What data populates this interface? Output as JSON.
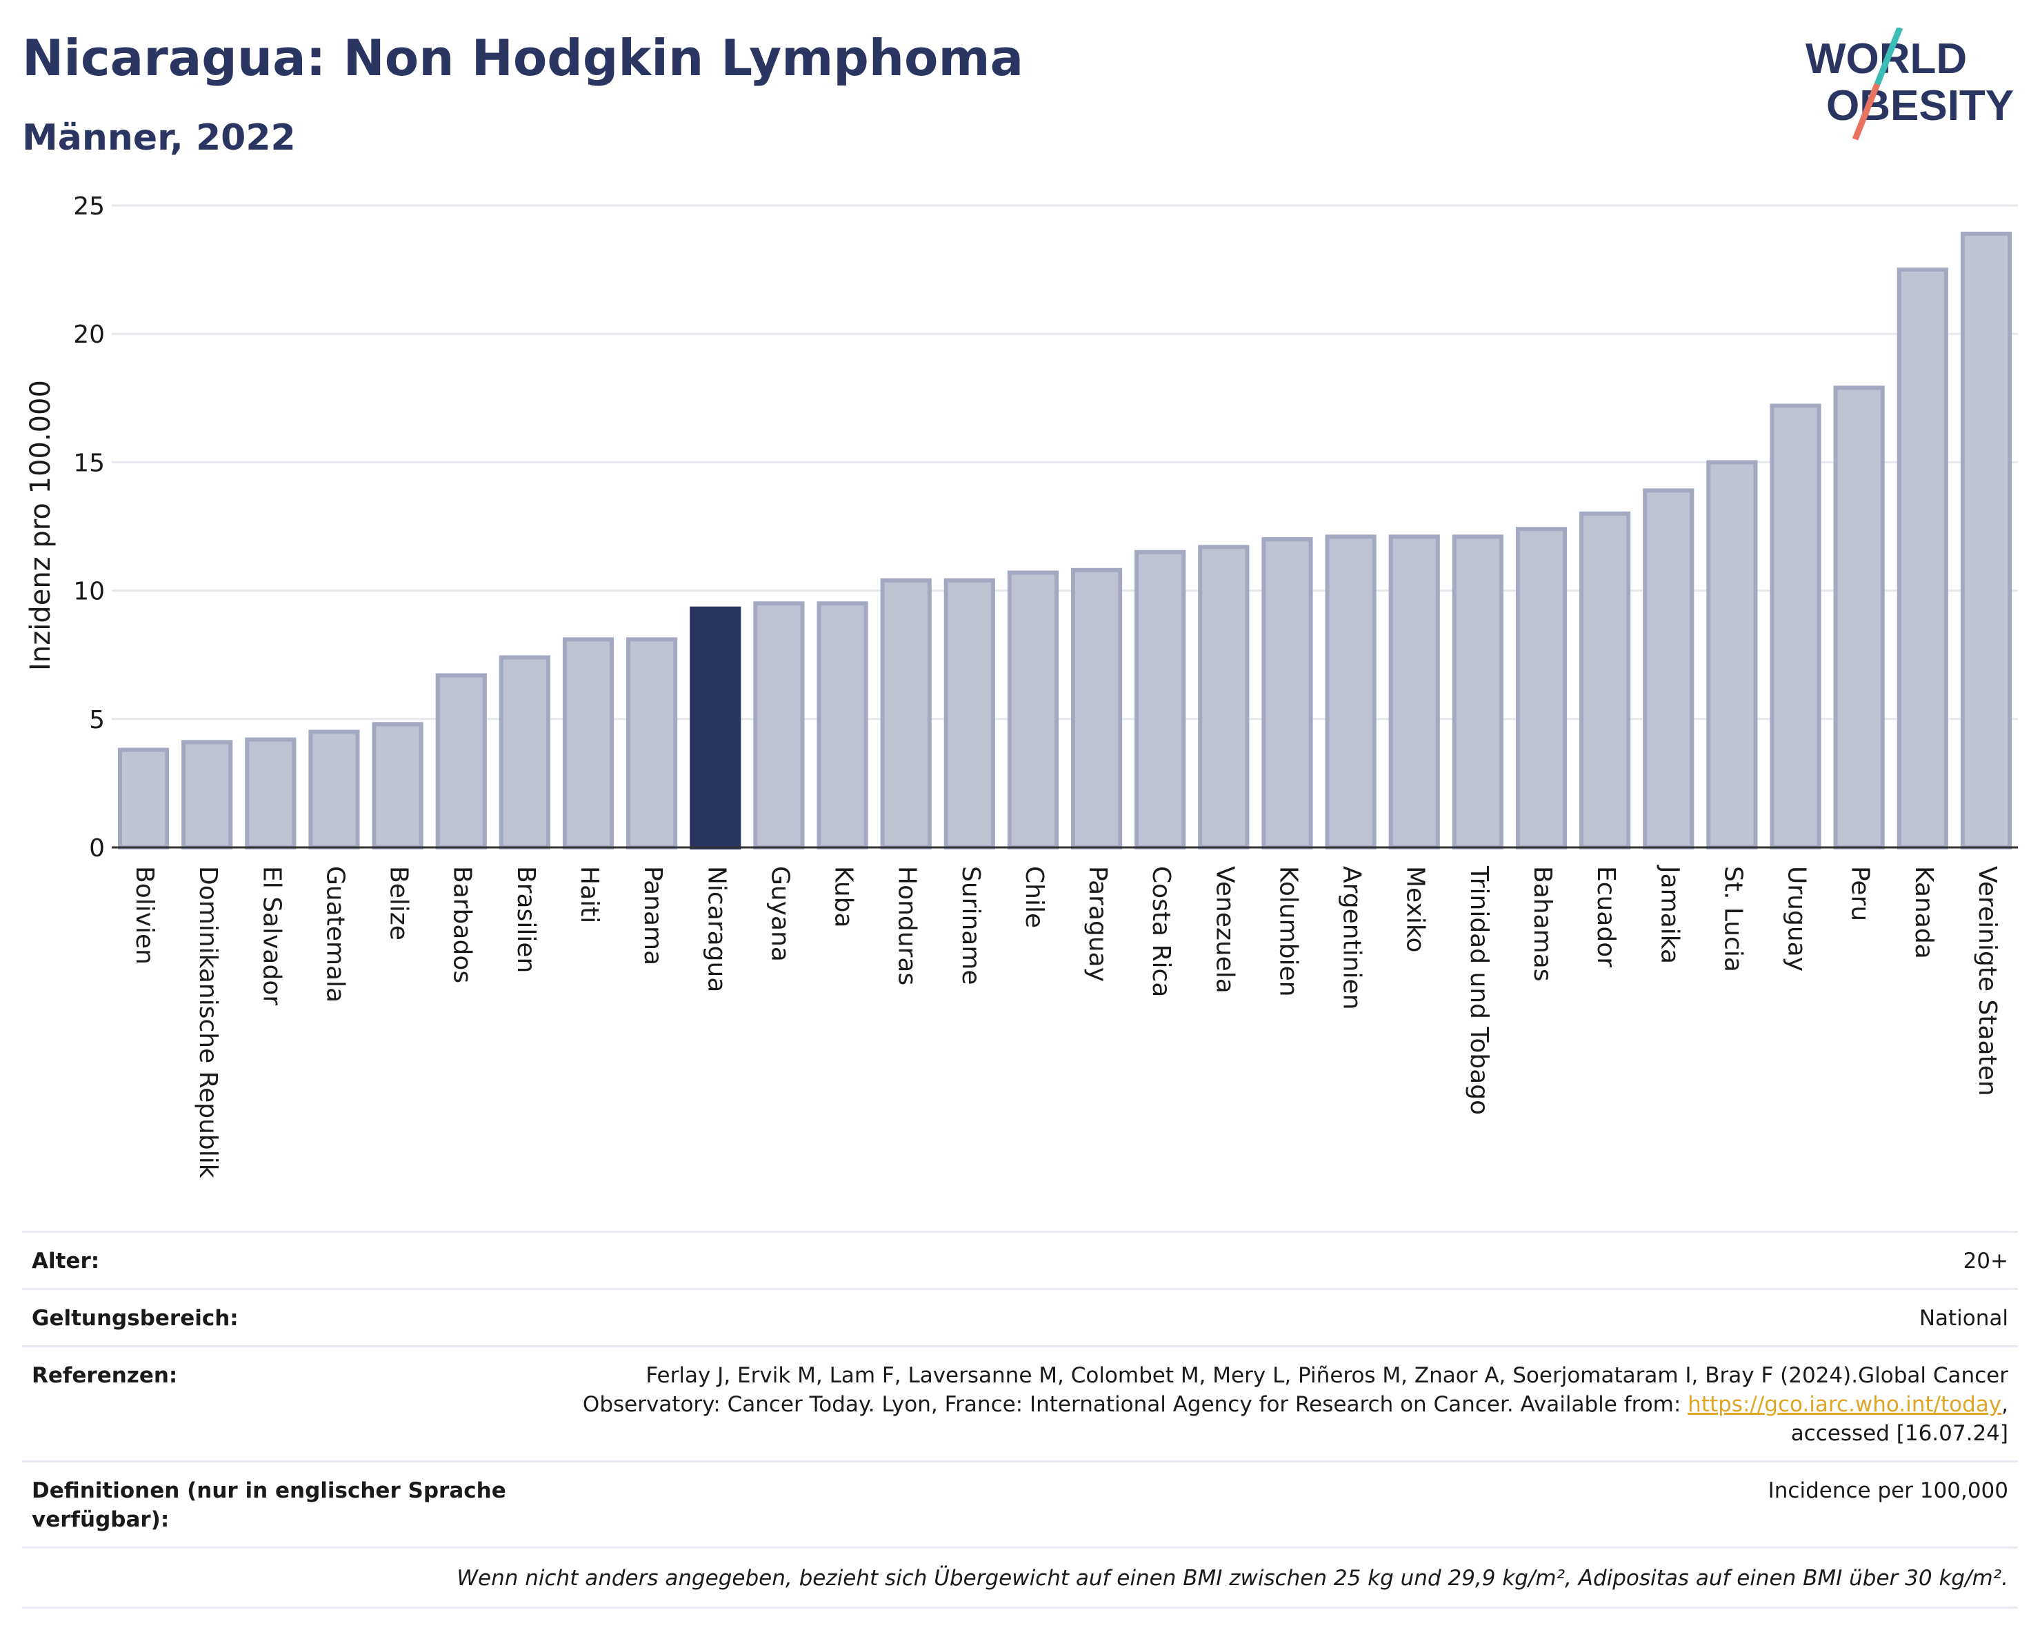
{
  "header": {
    "title": "Nicaragua: Non Hodgkin Lymphoma",
    "subtitle": "Männer, 2022",
    "logo_line1": "WORLD",
    "logo_line2": "OBESITY"
  },
  "colors": {
    "highlight": "#2b3561",
    "bar_fill": "#c0c4d2",
    "bar_stroke": "#a3a9c0",
    "title": "#2b3561",
    "logo_slash_top": "#3dbdb8",
    "logo_slash_bottom": "#e8745f",
    "link": "#e0a526"
  },
  "chart_data": {
    "type": "bar",
    "title": "Nicaragua: Non Hodgkin Lymphoma",
    "subtitle": "Männer, 2022",
    "xlabel": "",
    "ylabel": "Inzidenz pro 100.000",
    "ylim": [
      0,
      25
    ],
    "yticks": [
      0,
      5,
      10,
      15,
      20,
      25
    ],
    "grid": true,
    "highlight": "Nicaragua",
    "categories": [
      "Bolivien",
      "Dominikanische Republik",
      "El Salvador",
      "Guatemala",
      "Belize",
      "Barbados",
      "Brasilien",
      "Haiti",
      "Panama",
      "Nicaragua",
      "Guyana",
      "Kuba",
      "Honduras",
      "Suriname",
      "Chile",
      "Paraguay",
      "Costa Rica",
      "Venezuela",
      "Kolumbien",
      "Argentinien",
      "Mexiko",
      "Trinidad und Tobago",
      "Bahamas",
      "Ecuador",
      "Jamaika",
      "St. Lucia",
      "Uruguay",
      "Peru",
      "Kanada",
      "Vereinigte Staaten"
    ],
    "values": [
      3.8,
      4.1,
      4.2,
      4.5,
      4.8,
      6.7,
      7.4,
      8.1,
      8.1,
      9.3,
      9.5,
      9.5,
      10.4,
      10.4,
      10.7,
      10.8,
      11.5,
      11.7,
      12.0,
      12.1,
      12.1,
      12.1,
      12.4,
      13.0,
      13.9,
      15.0,
      17.2,
      17.9,
      22.5,
      23.9
    ]
  },
  "info": {
    "age_label": "Alter:",
    "age_value": "20+",
    "scope_label": "Geltungsbereich:",
    "scope_value": "National",
    "refs_label": "Referenzen:",
    "refs_line1": "Ferlay J, Ervik M, Lam F, Laversanne M, Colombet M, Mery L, Piñeros M, Znaor A, Soerjomataram I, Bray F (2024).Global Cancer",
    "refs_line2": "Observatory: Cancer Today. Lyon, France: International Agency for Research on Cancer. Available from: ",
    "refs_link": "https://gco.iarc.who.int/today",
    "refs_line2_end": ",",
    "refs_line3": "accessed [16.07.24]",
    "def_label_line1": "Definitionen (nur in englischer Sprache",
    "def_label_line2": "verfügbar):",
    "def_value": "Incidence per 100,000",
    "note": "Wenn nicht anders angegeben, bezieht sich Übergewicht auf einen BMI zwischen 25 kg und 29,9 kg/m², Adipositas auf einen BMI über 30 kg/m²."
  }
}
